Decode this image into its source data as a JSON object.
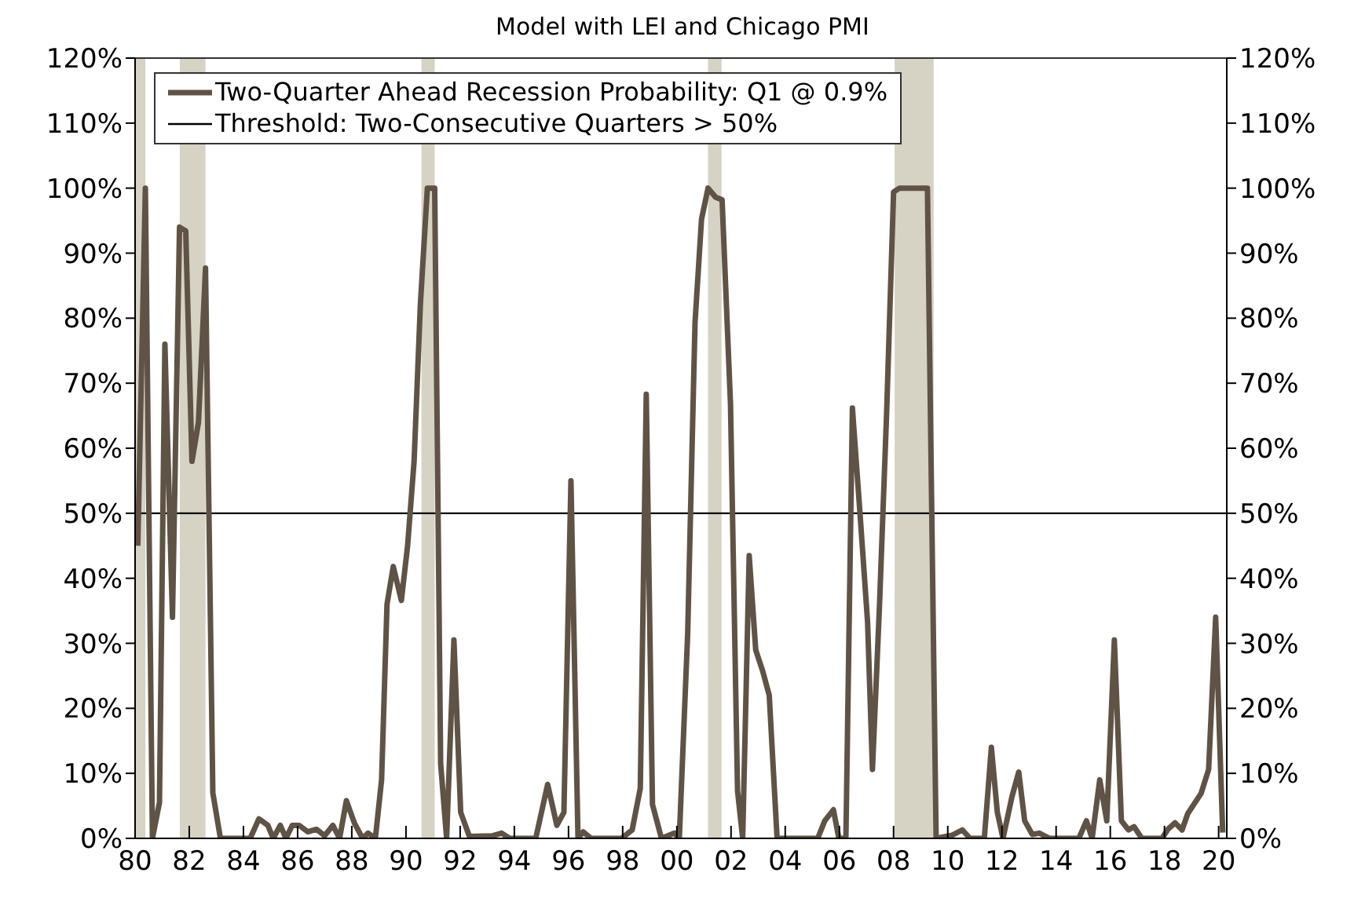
{
  "chart_data": {
    "type": "line",
    "title": "Model with LEI and Chicago PMI",
    "x": [
      1980.1,
      1980.38,
      1980.64,
      1980.9,
      1981.1,
      1981.38,
      1981.64,
      1981.87,
      1982.1,
      1982.34,
      1982.6,
      1982.87,
      1983.15,
      1984.25,
      1984.57,
      1984.9,
      1985.1,
      1985.36,
      1985.57,
      1985.8,
      1986.06,
      1986.38,
      1986.7,
      1987.0,
      1987.3,
      1987.55,
      1987.8,
      1988.1,
      1988.4,
      1988.6,
      1988.87,
      1989.1,
      1989.3,
      1989.53,
      1989.83,
      1990.06,
      1990.3,
      1990.53,
      1990.79,
      1991.06,
      1991.28,
      1991.5,
      1991.77,
      1992.02,
      1992.34,
      1993.2,
      1993.53,
      1993.83,
      1994.79,
      1995.23,
      1995.57,
      1995.83,
      1996.09,
      1996.35,
      1996.54,
      1996.83,
      1997.96,
      1998.35,
      1998.65,
      1998.87,
      1999.1,
      1999.43,
      1999.91,
      2000.09,
      2000.4,
      2000.67,
      2000.91,
      2001.15,
      2001.43,
      2001.67,
      2001.98,
      2002.24,
      2002.43,
      2002.67,
      2002.91,
      2003.17,
      2003.41,
      2003.7,
      2005.2,
      2005.46,
      2005.78,
      2005.98,
      2006.24,
      2006.48,
      2006.76,
      2007.04,
      2007.22,
      2007.48,
      2007.74,
      2008.0,
      2008.22,
      2009.25,
      2009.57,
      2010.17,
      2010.54,
      2010.82,
      2011.35,
      2011.61,
      2011.83,
      2012.04,
      2012.37,
      2012.62,
      2012.84,
      2013.12,
      2013.38,
      2013.76,
      2014.84,
      2015.12,
      2015.33,
      2015.61,
      2015.87,
      2016.15,
      2016.41,
      2016.67,
      2016.88,
      2017.16,
      2017.91,
      2018.13,
      2018.39,
      2018.65,
      2018.86,
      2019.35,
      2019.63,
      2019.89,
      2020.15
    ],
    "series": [
      {
        "name": "Two-Quarter Ahead Recession Probability: Q1 @ 0.9%",
        "color": "#5f5346",
        "values": [
          45,
          100,
          0,
          5.5,
          76,
          34,
          94,
          93.4,
          58,
          64,
          87.7,
          7,
          0,
          0,
          3,
          2,
          0,
          2,
          0,
          2,
          2,
          1,
          1.4,
          0.4,
          2,
          0,
          5.8,
          2.3,
          0,
          0.8,
          0,
          9,
          36,
          41.8,
          36.6,
          45,
          58,
          82,
          100,
          100,
          11.5,
          0,
          30.5,
          4,
          0.3,
          0.4,
          0.8,
          0,
          0,
          8.3,
          2,
          4,
          55,
          0,
          1,
          0,
          0,
          1.3,
          7.7,
          68.3,
          5.2,
          0,
          0.8,
          0,
          31.6,
          79.3,
          95.2,
          100,
          98.6,
          98.2,
          66.8,
          7.3,
          0,
          43.5,
          29,
          25.7,
          22,
          0,
          0,
          2.7,
          4.4,
          0,
          0,
          66.2,
          50,
          33.3,
          10.6,
          35.8,
          65,
          99.4,
          100,
          100,
          0,
          0.5,
          1.3,
          0,
          0,
          14,
          4,
          0,
          6.4,
          10.2,
          2.7,
          0.6,
          0.8,
          0,
          0,
          2.7,
          0,
          9,
          2.7,
          30.5,
          2.7,
          1.3,
          1.8,
          0,
          0,
          1.4,
          2.4,
          1.3,
          3.8,
          6.9,
          10.6,
          34,
          0.9
        ]
      }
    ],
    "ref_lines": [
      {
        "axis": "y",
        "value": 50,
        "label": "Threshold: Two-Consecutive Quarters > 50%",
        "color": "#000000",
        "line_style": "solid"
      }
    ],
    "bands": [
      {
        "axis": "x",
        "from": 1980.0,
        "to": 1980.38,
        "color": "#d6d2c4"
      },
      {
        "axis": "x",
        "from": 1981.65,
        "to": 1982.6,
        "color": "#d6d2c4"
      },
      {
        "axis": "x",
        "from": 1990.57,
        "to": 1991.06,
        "color": "#d6d2c4"
      },
      {
        "axis": "x",
        "from": 2001.15,
        "to": 2001.65,
        "color": "#d6d2c4"
      },
      {
        "axis": "x",
        "from": 2008.04,
        "to": 2009.48,
        "color": "#d6d2c4"
      }
    ],
    "xlim": [
      1980,
      2020.3
    ],
    "xticks": [
      {
        "value": 1980,
        "label": "80"
      },
      {
        "value": 1982,
        "label": "82"
      },
      {
        "value": 1984,
        "label": "84"
      },
      {
        "value": 1986,
        "label": "86"
      },
      {
        "value": 1988,
        "label": "88"
      },
      {
        "value": 1990,
        "label": "90"
      },
      {
        "value": 1992,
        "label": "92"
      },
      {
        "value": 1994,
        "label": "94"
      },
      {
        "value": 1996,
        "label": "96"
      },
      {
        "value": 1998,
        "label": "98"
      },
      {
        "value": 2000,
        "label": "00"
      },
      {
        "value": 2002,
        "label": "02"
      },
      {
        "value": 2004,
        "label": "04"
      },
      {
        "value": 2006,
        "label": "06"
      },
      {
        "value": 2008,
        "label": "08"
      },
      {
        "value": 2010,
        "label": "10"
      },
      {
        "value": 2012,
        "label": "12"
      },
      {
        "value": 2014,
        "label": "14"
      },
      {
        "value": 2016,
        "label": "16"
      },
      {
        "value": 2018,
        "label": "18"
      },
      {
        "value": 2020,
        "label": "20"
      }
    ],
    "ylim": [
      0,
      120
    ],
    "yticks": [
      {
        "value": 0,
        "label": "0%"
      },
      {
        "value": 10,
        "label": "10%"
      },
      {
        "value": 20,
        "label": "20%"
      },
      {
        "value": 30,
        "label": "30%"
      },
      {
        "value": 40,
        "label": "40%"
      },
      {
        "value": 50,
        "label": "50%"
      },
      {
        "value": 60,
        "label": "60%"
      },
      {
        "value": 70,
        "label": "70%"
      },
      {
        "value": 80,
        "label": "80%"
      },
      {
        "value": 90,
        "label": "90%"
      },
      {
        "value": 100,
        "label": "100%"
      },
      {
        "value": 110,
        "label": "110%"
      },
      {
        "value": 120,
        "label": "120%"
      }
    ],
    "y2lim": [
      0,
      120
    ],
    "y2ticks": [
      {
        "value": 0,
        "label": "0%"
      },
      {
        "value": 10,
        "label": "10%"
      },
      {
        "value": 20,
        "label": "20%"
      },
      {
        "value": 30,
        "label": "30%"
      },
      {
        "value": 40,
        "label": "40%"
      },
      {
        "value": 50,
        "label": "50%"
      },
      {
        "value": 60,
        "label": "60%"
      },
      {
        "value": 70,
        "label": "70%"
      },
      {
        "value": 80,
        "label": "80%"
      },
      {
        "value": 90,
        "label": "90%"
      },
      {
        "value": 100,
        "label": "100%"
      },
      {
        "value": 110,
        "label": "110%"
      },
      {
        "value": 120,
        "label": "120%"
      }
    ],
    "legend": "top left",
    "marker": "none",
    "line_style": "solid"
  }
}
